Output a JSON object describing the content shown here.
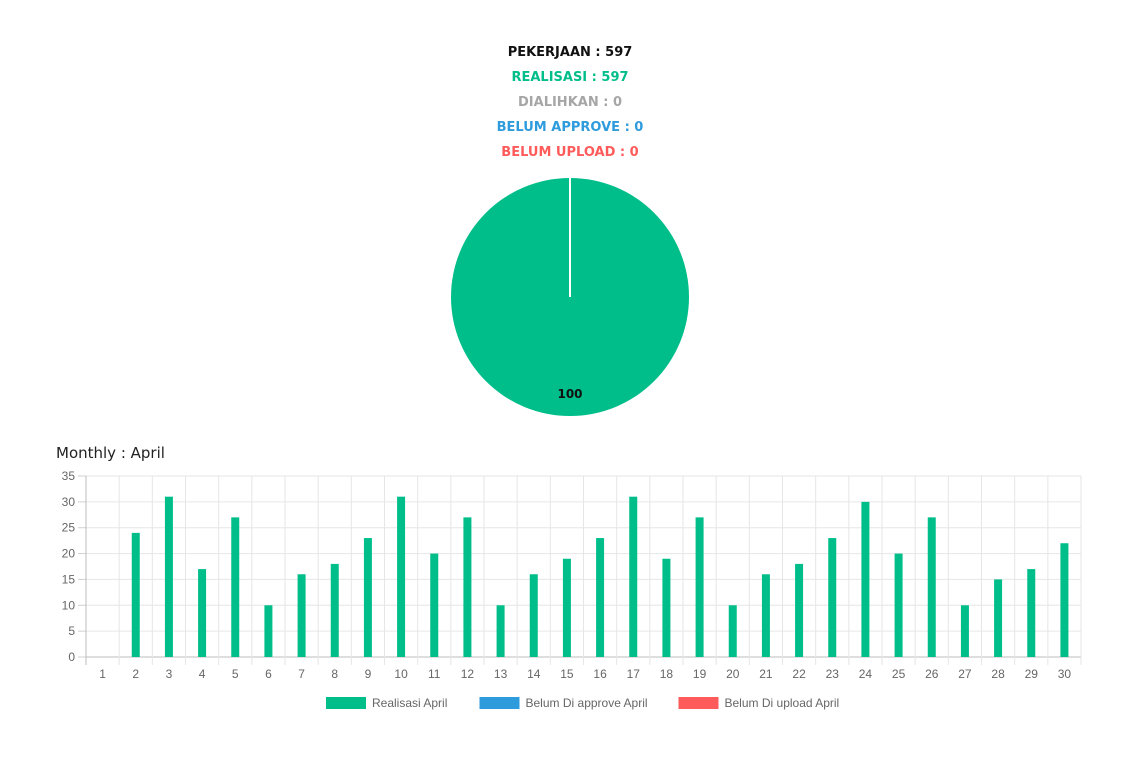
{
  "summary": {
    "pekerjaan": "PEKERJAAN : 597",
    "realisasi": "REALISASI : 597",
    "dialihkan": "DIALIHKAN : 0",
    "belum_approve": "BELUM APPROVE : 0",
    "belum_upload": "BELUM UPLOAD : 0"
  },
  "colors": {
    "black": "#111111",
    "green": "#00be8a",
    "grey": "#a6a6a6",
    "blue": "#2e9bdc",
    "red": "#ff5b5b"
  },
  "monthly_title": "Monthly : April",
  "chart_data": [
    {
      "type": "pie",
      "slices": [
        {
          "value": 100,
          "label": "100",
          "color": "#00be8a"
        }
      ]
    },
    {
      "type": "bar",
      "categories": [
        "1",
        "2",
        "3",
        "4",
        "5",
        "6",
        "7",
        "8",
        "9",
        "10",
        "11",
        "12",
        "13",
        "14",
        "15",
        "16",
        "17",
        "18",
        "19",
        "20",
        "21",
        "22",
        "23",
        "24",
        "25",
        "26",
        "27",
        "28",
        "29",
        "30"
      ],
      "series": [
        {
          "name": "Realisasi April",
          "color": "#00be8a",
          "values": [
            0,
            24,
            31,
            17,
            27,
            10,
            16,
            18,
            23,
            31,
            20,
            27,
            10,
            16,
            19,
            23,
            31,
            19,
            27,
            10,
            16,
            18,
            23,
            30,
            20,
            27,
            10,
            15,
            17,
            22
          ]
        },
        {
          "name": "Belum Di approve April",
          "color": "#2e9bdc",
          "values": [
            0,
            0,
            0,
            0,
            0,
            0,
            0,
            0,
            0,
            0,
            0,
            0,
            0,
            0,
            0,
            0,
            0,
            0,
            0,
            0,
            0,
            0,
            0,
            0,
            0,
            0,
            0,
            0,
            0,
            0
          ]
        },
        {
          "name": "Belum Di upload April",
          "color": "#ff5b5b",
          "values": [
            0,
            0,
            0,
            0,
            0,
            0,
            0,
            0,
            0,
            0,
            0,
            0,
            0,
            0,
            0,
            0,
            0,
            0,
            0,
            0,
            0,
            0,
            0,
            0,
            0,
            0,
            0,
            0,
            0,
            0
          ]
        }
      ],
      "ylim": [
        0,
        35
      ],
      "yticks": [
        "0",
        "5",
        "10",
        "15",
        "20",
        "25",
        "30",
        "35"
      ],
      "grid": true,
      "legend": "bottom"
    }
  ]
}
